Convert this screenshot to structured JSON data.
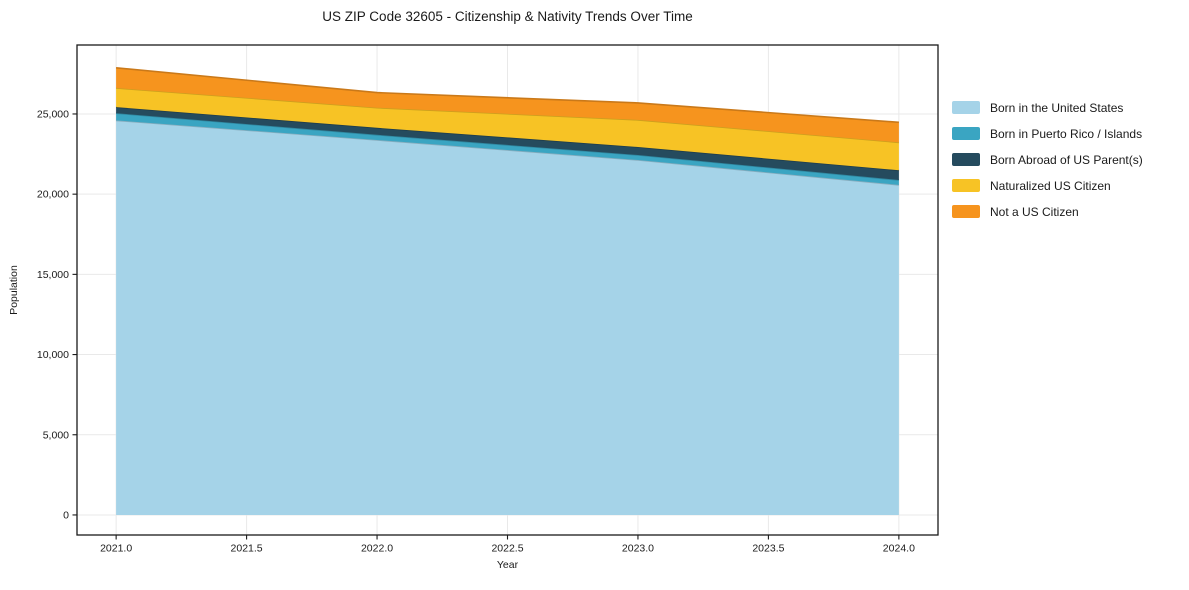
{
  "chart": {
    "title": "US ZIP Code 32605 - Citizenship & Nativity Trends Over Time",
    "xlabel": "Year",
    "ylabel": "Population"
  },
  "chart_data": {
    "type": "area",
    "stacked": true,
    "title": "US ZIP Code 32605 - Citizenship & Nativity Trends Over Time",
    "xlabel": "Year",
    "ylabel": "Population",
    "x": [
      2021,
      2022,
      2023,
      2024
    ],
    "series": [
      {
        "name": "Born in the United States",
        "color": "#a5d3e8",
        "values": [
          24600,
          23380,
          22130,
          20575
        ]
      },
      {
        "name": "Born in Puerto Rico / Islands",
        "color": "#3aa5c2",
        "values": [
          450,
          320,
          310,
          310
        ]
      },
      {
        "name": "Born Abroad of US Parent(s)",
        "color": "#254b5e",
        "values": [
          380,
          440,
          500,
          600
        ]
      },
      {
        "name": "Naturalized US Citizen",
        "color": "#f7c325",
        "values": [
          1190,
          1250,
          1690,
          1745
        ]
      },
      {
        "name": "Not a US Citizen",
        "color": "#f6941e",
        "values": [
          1260,
          940,
          1060,
          1250
        ]
      }
    ],
    "stack_totals": [
      27880,
      26330,
      25690,
      24480
    ],
    "xlim": [
      2020.85,
      2024.15
    ],
    "ylim": [
      -1250,
      29300
    ],
    "xticks": {
      "values": [
        2021.0,
        2021.5,
        2022.0,
        2022.5,
        2023.0,
        2023.5,
        2024.0
      ],
      "labels": [
        "2021.0",
        "2021.5",
        "2022.0",
        "2022.5",
        "2023.0",
        "2023.5",
        "2024.0"
      ]
    },
    "yticks": {
      "values": [
        0,
        5000,
        10000,
        15000,
        20000,
        25000
      ],
      "labels": [
        "0",
        "5,000",
        "10,000",
        "15,000",
        "20,000",
        "25,000"
      ]
    },
    "grid": true,
    "grid_color": "#e9e9e9",
    "spine_color": "#1a1a1a",
    "legend_position": "right-outside"
  }
}
